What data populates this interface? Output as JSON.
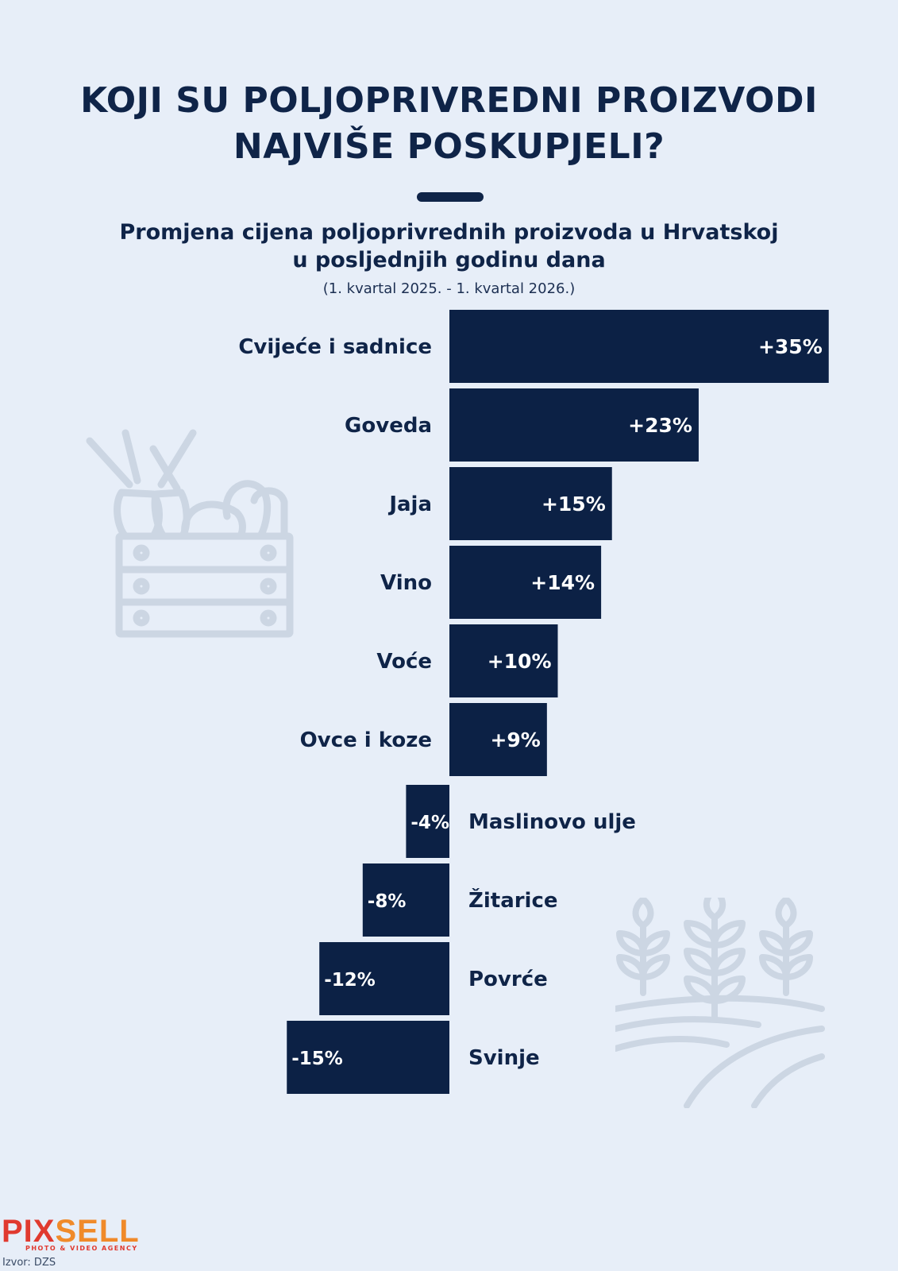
{
  "title_lines": [
    "KOJI SU POLJOPRIVREDNI PROIZVODI",
    "NAJVIŠE POSKUPJELI?"
  ],
  "subtitle_lines": [
    "Promjena cijena poljoprivrednih proizvoda u Hrvatskoj",
    "u posljednjih godinu dana"
  ],
  "period": "(1. kvartal 2025. - 1. kvartal 2026.)",
  "brand": {
    "part1": "PIX",
    "part2": "SELL",
    "tagline": "PHOTO & VIDEO AGENCY",
    "color1": "#e03a2f",
    "color2": "#f08a2a"
  },
  "source": "Izvor: DZS",
  "colors": {
    "background": "#e7eef8",
    "bar": "#0c2145",
    "text": "#0f2448",
    "icon": "#ccd6e3"
  },
  "icons": [
    "vegetable-crate-icon",
    "wheat-field-icon"
  ],
  "chart_data": {
    "type": "bar",
    "orientation": "horizontal",
    "categories": [
      "Cvijeće i sadnice",
      "Goveda",
      "Jaja",
      "Vino",
      "Voće",
      "Ovce i koze",
      "Maslinovo ulje",
      "Žitarice",
      "Povrće",
      "Svinje"
    ],
    "values": [
      35,
      23,
      15,
      14,
      10,
      9,
      -4,
      -8,
      -12,
      -15
    ],
    "labels": [
      "+35%",
      "+23%",
      "+15%",
      "+14%",
      "+10%",
      "+9%",
      "-4%",
      "-8%",
      "-12%",
      "-15%"
    ],
    "unit": "%"
  }
}
